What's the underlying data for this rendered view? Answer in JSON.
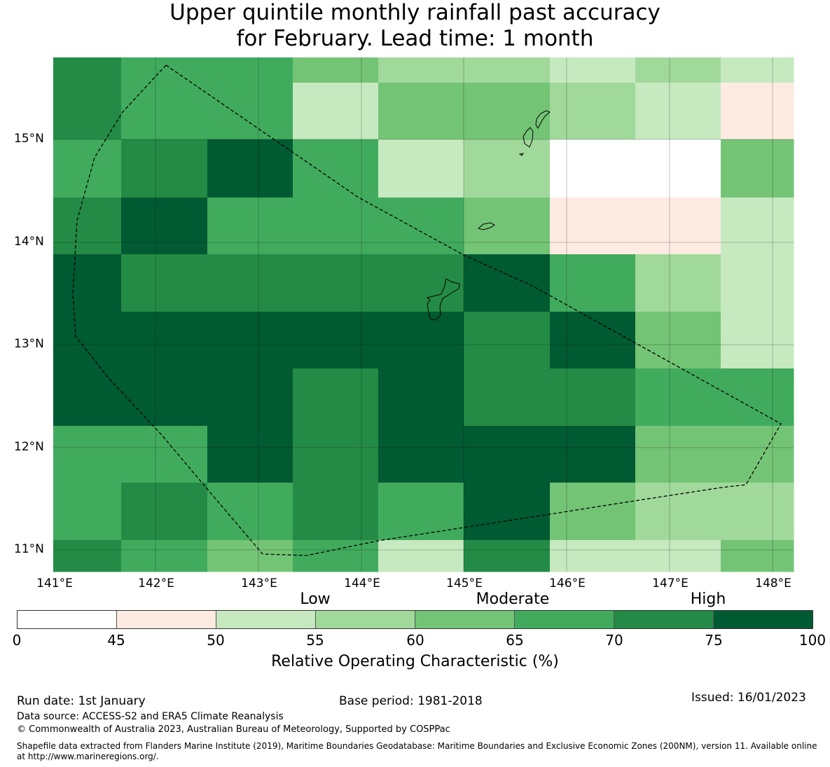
{
  "title": {
    "line1": "Upper quintile monthly rainfall past accuracy",
    "line2": "for February. Lead time: 1 month"
  },
  "map": {
    "lat_ticks": [
      "15°N",
      "14°N",
      "13°N",
      "12°N",
      "11°N"
    ],
    "lon_ticks": [
      "141°E",
      "142°E",
      "143°E",
      "144°E",
      "145°E",
      "146°E",
      "147°E",
      "148°E"
    ],
    "grid_values_percent": [
      [
        72,
        67,
        67,
        62,
        57,
        57,
        52,
        57,
        52
      ],
      [
        72,
        67,
        67,
        52,
        62,
        62,
        57,
        52,
        47
      ],
      [
        67,
        72,
        77,
        67,
        52,
        57,
        20,
        20,
        62
      ],
      [
        72,
        77,
        67,
        67,
        67,
        62,
        47,
        47,
        52
      ],
      [
        77,
        72,
        72,
        72,
        72,
        77,
        67,
        57,
        52
      ],
      [
        77,
        77,
        77,
        77,
        77,
        72,
        77,
        62,
        52
      ],
      [
        77,
        77,
        77,
        72,
        77,
        72,
        72,
        67,
        67
      ],
      [
        67,
        67,
        77,
        72,
        77,
        77,
        77,
        62,
        62
      ],
      [
        67,
        72,
        67,
        72,
        67,
        77,
        62,
        57,
        57
      ],
      [
        72,
        67,
        62,
        67,
        52,
        72,
        52,
        52,
        62
      ]
    ]
  },
  "colorbar": {
    "categories": [
      "Low",
      "Moderate",
      "High"
    ],
    "ticks": [
      "0",
      "45",
      "50",
      "55",
      "60",
      "65",
      "70",
      "75",
      "100"
    ],
    "label": "Relative Operating Characteristic (%)",
    "colors": [
      "#ffffff",
      "#fdebe2",
      "#c7e9c0",
      "#a1d99b",
      "#74c476",
      "#41ab5d",
      "#238b45",
      "#005a32"
    ]
  },
  "footer": {
    "run_date": "Run date: 1st January",
    "base_period": "Base period: 1981-2018",
    "issued": "Issued: 16/01/2023",
    "data_source": "Data source: ACCESS-S2 and ERA5 Climate Reanalysis",
    "copyright": "© Commonwealth of Australia 2023, Australian Bureau of Meteorology, Supported by COSPPac",
    "shapefile": "Shapefile data extracted from Flanders Marine Institute (2019), Maritime Boundaries Geodatabase: Maritime Boundaries and Exclusive Economic Zones (200NM), version 11. Available online at http://www.marineregions.org/."
  }
}
